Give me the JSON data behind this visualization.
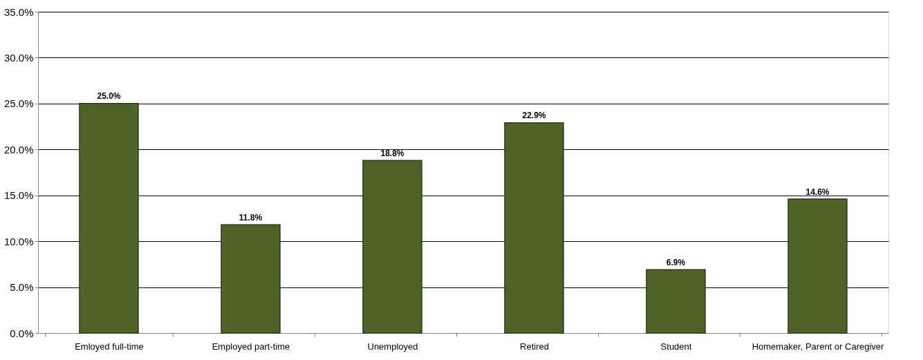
{
  "chart_data": {
    "type": "bar",
    "categories": [
      "Emloyed full-time",
      "Employed part-time",
      "Unemployed",
      "Retired",
      "Student",
      "Homemaker, Parent or Caregiver"
    ],
    "values": [
      25.0,
      11.8,
      18.8,
      22.9,
      6.9,
      14.6
    ],
    "value_labels": [
      "25.0%",
      "11.8%",
      "18.8%",
      "22.9%",
      "6.9%",
      "14.6%"
    ],
    "color": "#4f6228",
    "ylim": [
      0,
      35
    ],
    "yticks": [
      {
        "value": 0,
        "label": "0.0%"
      },
      {
        "value": 5,
        "label": "5.0%"
      },
      {
        "value": 10,
        "label": "10.0%"
      },
      {
        "value": 15,
        "label": "15.0%"
      },
      {
        "value": 20,
        "label": "20.0%"
      },
      {
        "value": 25,
        "label": "25.0%"
      },
      {
        "value": 30,
        "label": "30.0%"
      },
      {
        "value": 35,
        "label": "35.0%"
      }
    ],
    "grid": "y"
  }
}
